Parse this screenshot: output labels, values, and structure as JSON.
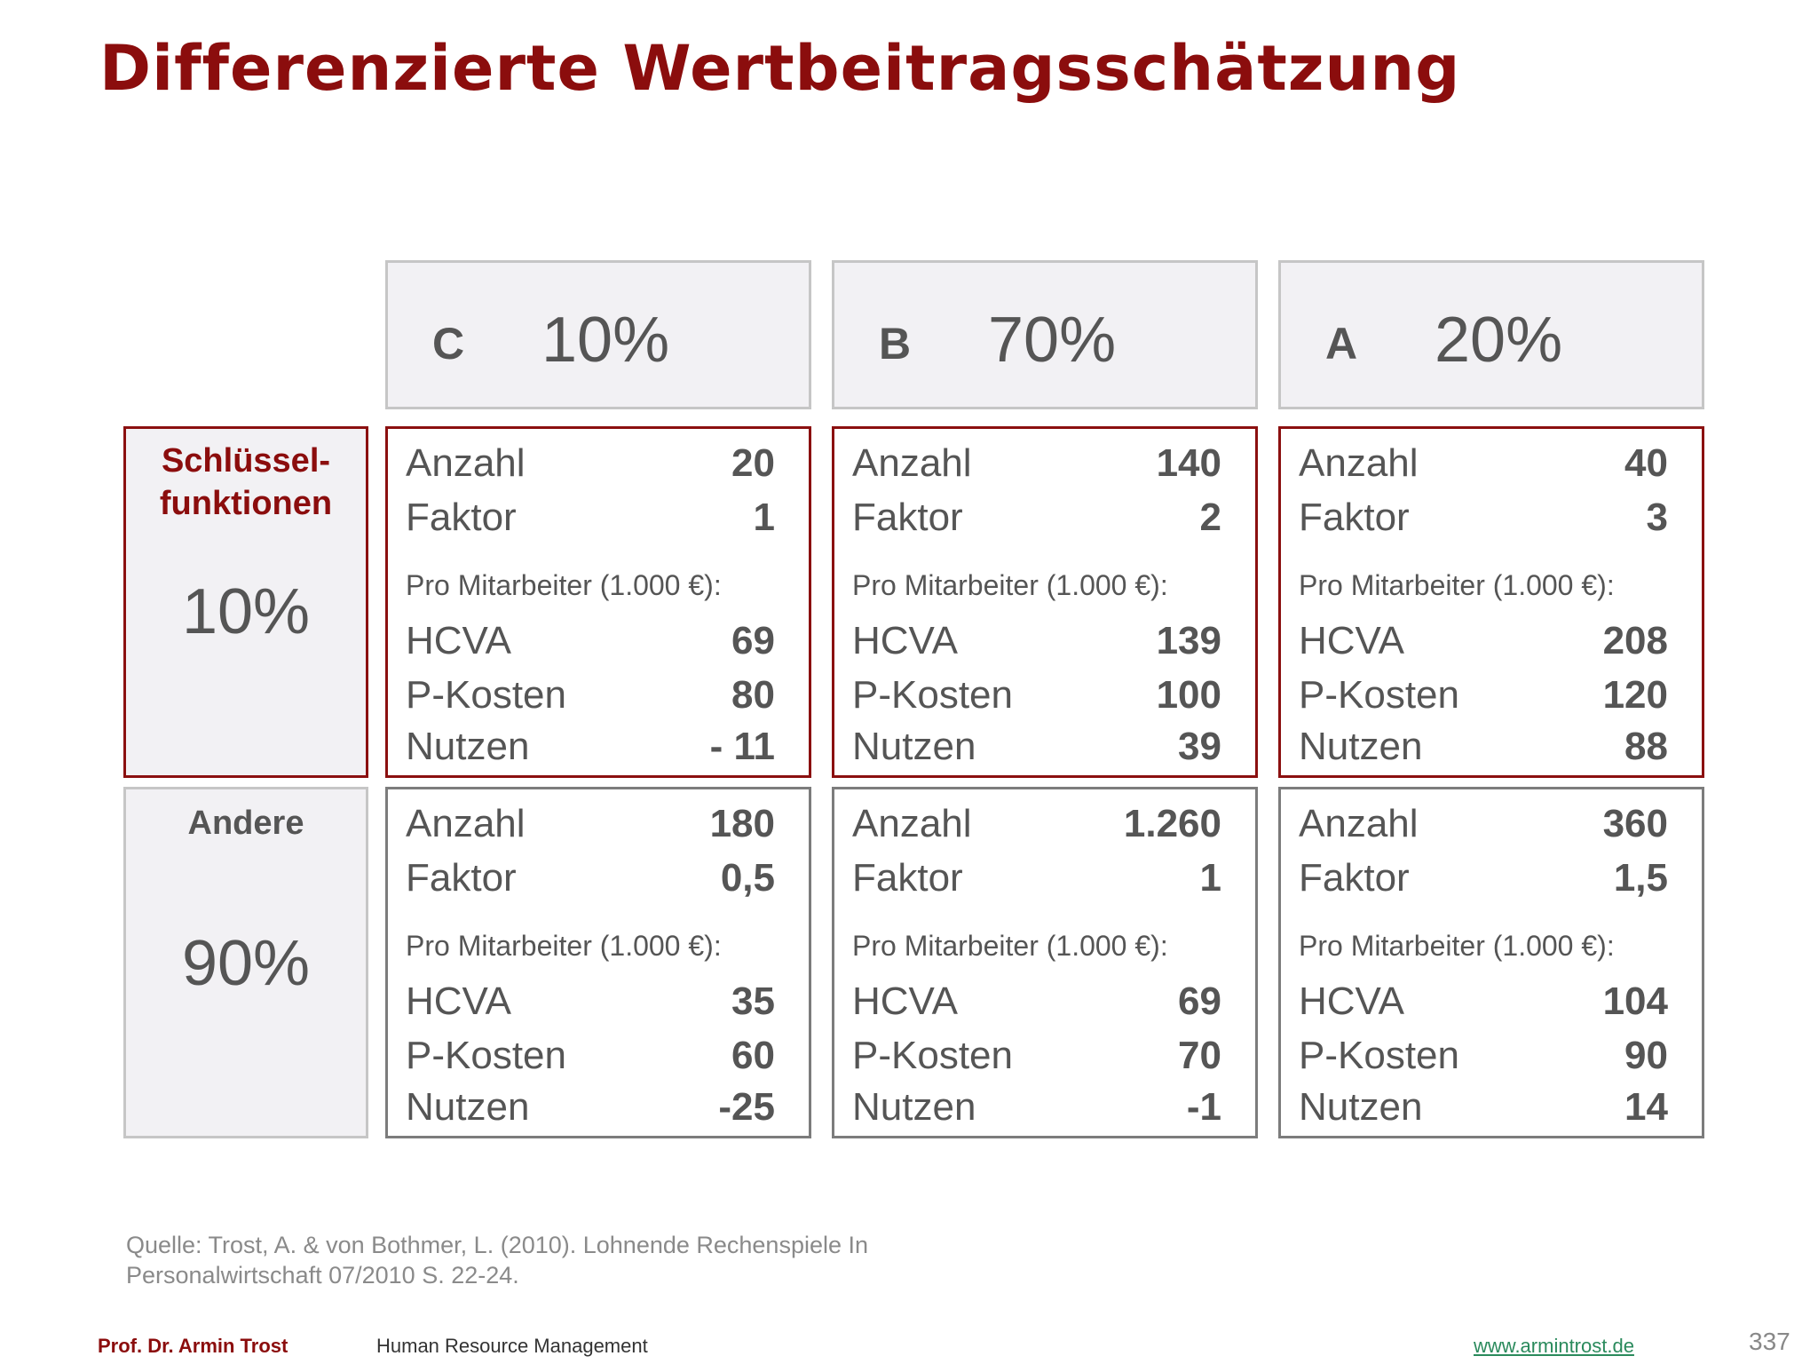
{
  "title": "Differenzierte Wertbeitragsschätzung",
  "columns": [
    {
      "letter": "C",
      "percent": "10%"
    },
    {
      "letter": "B",
      "percent": "70%"
    },
    {
      "letter": "A",
      "percent": "20%"
    }
  ],
  "rows": [
    {
      "name": "Schlüssel-\nfunktionen",
      "share": "10%"
    },
    {
      "name": "Andere",
      "share": "90%"
    }
  ],
  "labels": {
    "count": "Anzahl",
    "factor": "Faktor",
    "per_employee": "Pro Mitarbeiter (1.000 €):",
    "hcva": "HCVA",
    "costs": "P-Kosten",
    "benefit": "Nutzen"
  },
  "cells": [
    [
      {
        "count": "20",
        "factor": "1",
        "hcva": "69",
        "costs": "80",
        "benefit": "- 11"
      },
      {
        "count": "140",
        "factor": "2",
        "hcva": "139",
        "costs": "100",
        "benefit": "39"
      },
      {
        "count": "40",
        "factor": "3",
        "hcva": "208",
        "costs": "120",
        "benefit": "88"
      }
    ],
    [
      {
        "count": "180",
        "factor": "0,5",
        "hcva": "35",
        "costs": "60",
        "benefit": "-25"
      },
      {
        "count": "1.260",
        "factor": "1",
        "hcva": "69",
        "costs": "70",
        "benefit": "-1"
      },
      {
        "count": "360",
        "factor": "1,5",
        "hcva": "104",
        "costs": "90",
        "benefit": "14"
      }
    ]
  ],
  "source": "Quelle: Trost, A. & von Bothmer, L. (2010). Lohnende Rechenspiele In\nPersonalwirtschaft 07/2010 S. 22-24.",
  "footer": {
    "author": "Prof. Dr. Armin Trost",
    "course": "Human Resource Management",
    "link": "www.armintrost.de",
    "page": "337"
  }
}
